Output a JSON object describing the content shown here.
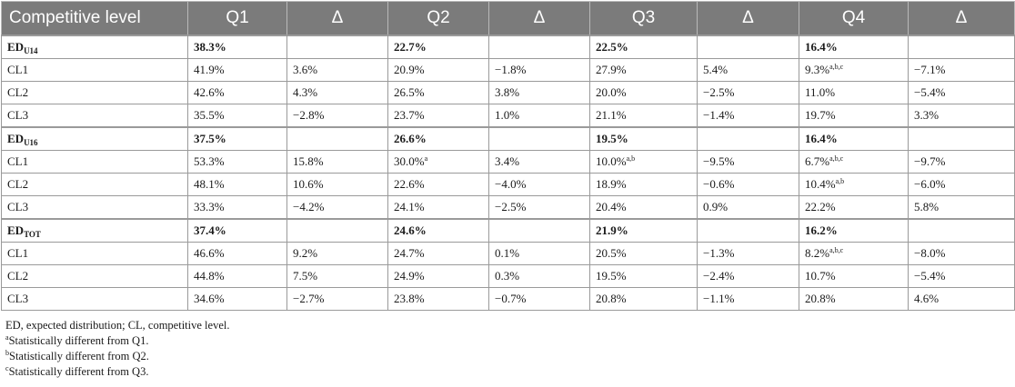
{
  "header": {
    "col0": "Competitive level",
    "q1": "Q1",
    "d1": "Δ",
    "q2": "Q2",
    "d2": "Δ",
    "q3": "Q3",
    "d3": "Δ",
    "q4": "Q4",
    "d4": "Δ"
  },
  "groups": [
    {
      "ed_prefix": "ED",
      "ed_sub": "U14",
      "q1": "38.3%",
      "q2": "22.7%",
      "q3": "22.5%",
      "q4": "16.4%",
      "rows": [
        {
          "label": "CL1",
          "q1": "41.9%",
          "q1s": "",
          "d1": "3.6%",
          "q2": "20.9%",
          "q2s": "",
          "d2": "−1.8%",
          "q3": "27.9%",
          "q3s": "",
          "d3": "5.4%",
          "q4": "9.3%",
          "q4s": "a,b,c",
          "d4": "−7.1%"
        },
        {
          "label": "CL2",
          "q1": "42.6%",
          "q1s": "",
          "d1": "4.3%",
          "q2": "26.5%",
          "q2s": "",
          "d2": "3.8%",
          "q3": "20.0%",
          "q3s": "",
          "d3": "−2.5%",
          "q4": "11.0%",
          "q4s": "",
          "d4": "−5.4%"
        },
        {
          "label": "CL3",
          "q1": "35.5%",
          "q1s": "",
          "d1": "−2.8%",
          "q2": "23.7%",
          "q2s": "",
          "d2": "1.0%",
          "q3": "21.1%",
          "q3s": "",
          "d3": "−1.4%",
          "q4": "19.7%",
          "q4s": "",
          "d4": "3.3%"
        }
      ]
    },
    {
      "ed_prefix": "ED",
      "ed_sub": "U16",
      "q1": "37.5%",
      "q2": "26.6%",
      "q3": "19.5%",
      "q4": "16.4%",
      "rows": [
        {
          "label": "CL1",
          "q1": "53.3%",
          "q1s": "",
          "d1": "15.8%",
          "q2": "30.0%",
          "q2s": "a",
          "d2": "3.4%",
          "q3": "10.0%",
          "q3s": "a,b",
          "d3": "−9.5%",
          "q4": "6.7%",
          "q4s": "a,b,c",
          "d4": "−9.7%"
        },
        {
          "label": "CL2",
          "q1": "48.1%",
          "q1s": "",
          "d1": "10.6%",
          "q2": "22.6%",
          "q2s": "",
          "d2": "−4.0%",
          "q3": "18.9%",
          "q3s": "",
          "d3": "−0.6%",
          "q4": "10.4%",
          "q4s": "a,b",
          "d4": "−6.0%"
        },
        {
          "label": "CL3",
          "q1": "33.3%",
          "q1s": "",
          "d1": "−4.2%",
          "q2": "24.1%",
          "q2s": "",
          "d2": "−2.5%",
          "q3": "20.4%",
          "q3s": "",
          "d3": "0.9%",
          "q4": "22.2%",
          "q4s": "",
          "d4": "5.8%"
        }
      ]
    },
    {
      "ed_prefix": "ED",
      "ed_sub": "TOT",
      "q1": "37.4%",
      "q2": "24.6%",
      "q3": "21.9%",
      "q4": "16.2%",
      "rows": [
        {
          "label": "CL1",
          "q1": "46.6%",
          "q1s": "",
          "d1": "9.2%",
          "q2": "24.7%",
          "q2s": "",
          "d2": "0.1%",
          "q3": "20.5%",
          "q3s": "",
          "d3": "−1.3%",
          "q4": "8.2%",
          "q4s": "a,b,c",
          "d4": "−8.0%"
        },
        {
          "label": "CL2",
          "q1": "44.8%",
          "q1s": "",
          "d1": "7.5%",
          "q2": "24.9%",
          "q2s": "",
          "d2": "0.3%",
          "q3": "19.5%",
          "q3s": "",
          "d3": "−2.4%",
          "q4": "10.7%",
          "q4s": "",
          "d4": "−5.4%"
        },
        {
          "label": "CL3",
          "q1": "34.6%",
          "q1s": "",
          "d1": "−2.7%",
          "q2": "23.8%",
          "q2s": "",
          "d2": "−0.7%",
          "q3": "20.8%",
          "q3s": "",
          "d3": "−1.1%",
          "q4": "20.8%",
          "q4s": "",
          "d4": "4.6%"
        }
      ]
    }
  ],
  "notes": {
    "line1": "ED, expected distribution; CL, competitive level.",
    "a_mark": "a",
    "a_text": "Statistically different from Q1.",
    "b_mark": "b",
    "b_text": "Statistically different from Q2.",
    "c_mark": "c",
    "c_text": "Statistically different from Q3."
  }
}
